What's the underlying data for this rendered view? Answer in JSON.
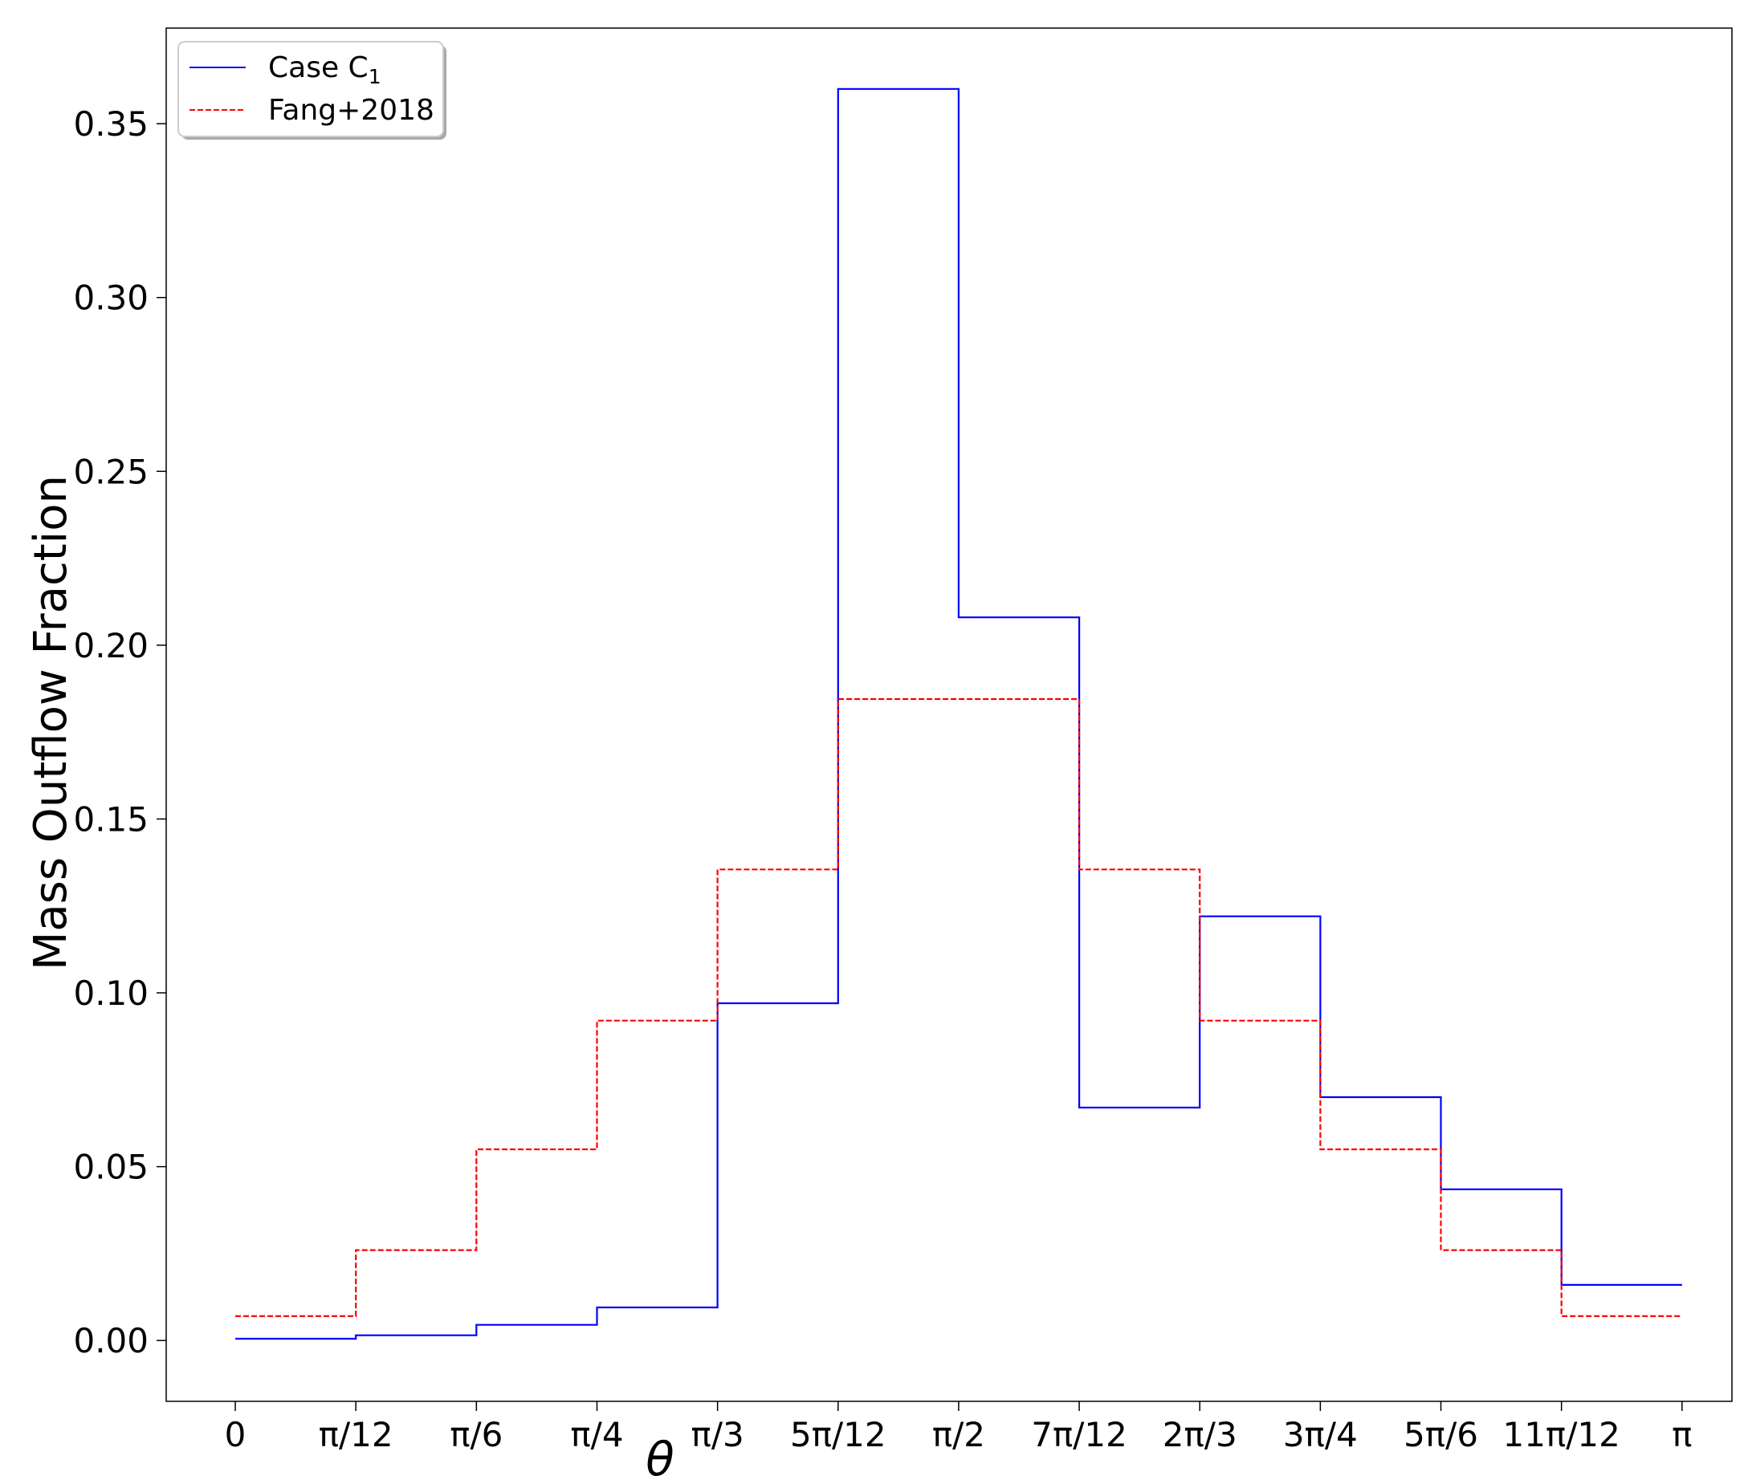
{
  "chart_data": {
    "type": "line",
    "style": "step",
    "xlabel": "θ",
    "ylabel": "Mass Outflow Fraction",
    "xlim": [
      -0.15,
      3.25
    ],
    "ylim": [
      -0.0175,
      0.3775
    ],
    "grid": false,
    "legend_position": "top-left",
    "x_ticks": [
      {
        "value": 0,
        "label": "0"
      },
      {
        "value": 0.2618,
        "label": "π/12"
      },
      {
        "value": 0.5236,
        "label": "π/6"
      },
      {
        "value": 0.7854,
        "label": "π/4"
      },
      {
        "value": 1.0472,
        "label": "π/3"
      },
      {
        "value": 1.309,
        "label": "5π/12"
      },
      {
        "value": 1.5708,
        "label": "π/2"
      },
      {
        "value": 1.8326,
        "label": "7π/12"
      },
      {
        "value": 2.0944,
        "label": "2π/3"
      },
      {
        "value": 2.3562,
        "label": "3π/4"
      },
      {
        "value": 2.618,
        "label": "5π/6"
      },
      {
        "value": 2.8798,
        "label": "11π/12"
      },
      {
        "value": 3.1416,
        "label": "π"
      }
    ],
    "y_ticks": [
      {
        "value": 0.0,
        "label": "0.00"
      },
      {
        "value": 0.05,
        "label": "0.05"
      },
      {
        "value": 0.1,
        "label": "0.10"
      },
      {
        "value": 0.15,
        "label": "0.15"
      },
      {
        "value": 0.2,
        "label": "0.20"
      },
      {
        "value": 0.25,
        "label": "0.25"
      },
      {
        "value": 0.3,
        "label": "0.30"
      },
      {
        "value": 0.35,
        "label": "0.35"
      }
    ],
    "bin_edges": [
      0,
      0.2618,
      0.5236,
      0.7854,
      1.0472,
      1.309,
      1.5708,
      1.8326,
      2.0944,
      2.3562,
      2.618,
      2.8798,
      3.1416
    ],
    "series": [
      {
        "name": "Case C",
        "name_subscript": "1",
        "color": "#0000ff",
        "dashed": false,
        "values": [
          0.0005,
          0.0015,
          0.0045,
          0.0095,
          0.097,
          0.36,
          0.208,
          0.067,
          0.122,
          0.07,
          0.0435,
          0.016
        ]
      },
      {
        "name": "Fang+2018",
        "color": "#ff0000",
        "dashed": true,
        "values": [
          0.007,
          0.026,
          0.055,
          0.092,
          0.1355,
          0.1845,
          0.1845,
          0.1355,
          0.092,
          0.055,
          0.026,
          0.007
        ]
      }
    ]
  }
}
